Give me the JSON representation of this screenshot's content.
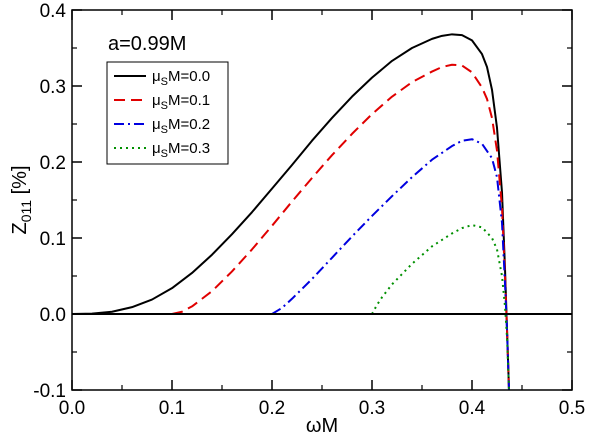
{
  "chart_data": {
    "type": "line",
    "title": "",
    "xlabel": "ωM",
    "ylabel": "Z011 [%]",
    "xlim": [
      0.0,
      0.5
    ],
    "ylim": [
      -0.1,
      0.4
    ],
    "x_ticks": [
      "0.0",
      "0.1",
      "0.2",
      "0.3",
      "0.4",
      "0.5"
    ],
    "y_ticks": [
      "-0.1",
      "0.0",
      "0.1",
      "0.2",
      "0.3",
      "0.4"
    ],
    "grid": false,
    "legend_position": "top-left",
    "annotation": "a=0.99M",
    "horizontal_line_y": 0.0,
    "series": [
      {
        "name": "μSM=0.0",
        "color": "#000000",
        "dash": "solid",
        "points": [
          [
            0.0,
            0.0
          ],
          [
            0.02,
            0.0005
          ],
          [
            0.04,
            0.003
          ],
          [
            0.06,
            0.009
          ],
          [
            0.08,
            0.019
          ],
          [
            0.1,
            0.034
          ],
          [
            0.12,
            0.054
          ],
          [
            0.14,
            0.078
          ],
          [
            0.16,
            0.105
          ],
          [
            0.18,
            0.134
          ],
          [
            0.2,
            0.165
          ],
          [
            0.22,
            0.196
          ],
          [
            0.24,
            0.228
          ],
          [
            0.26,
            0.258
          ],
          [
            0.28,
            0.286
          ],
          [
            0.3,
            0.311
          ],
          [
            0.32,
            0.333
          ],
          [
            0.34,
            0.35
          ],
          [
            0.36,
            0.362
          ],
          [
            0.37,
            0.366
          ],
          [
            0.38,
            0.368
          ],
          [
            0.39,
            0.367
          ],
          [
            0.4,
            0.36
          ],
          [
            0.41,
            0.342
          ],
          [
            0.415,
            0.325
          ],
          [
            0.42,
            0.295
          ],
          [
            0.425,
            0.245
          ],
          [
            0.43,
            0.16
          ],
          [
            0.433,
            0.06
          ],
          [
            0.435,
            -0.02
          ],
          [
            0.437,
            -0.1
          ]
        ]
      },
      {
        "name": "μSM=0.1",
        "color": "#e00000",
        "dash": "dashed",
        "points": [
          [
            0.1,
            0.0
          ],
          [
            0.11,
            0.003
          ],
          [
            0.12,
            0.01
          ],
          [
            0.14,
            0.03
          ],
          [
            0.16,
            0.056
          ],
          [
            0.18,
            0.085
          ],
          [
            0.2,
            0.116
          ],
          [
            0.22,
            0.148
          ],
          [
            0.24,
            0.179
          ],
          [
            0.26,
            0.209
          ],
          [
            0.28,
            0.237
          ],
          [
            0.3,
            0.263
          ],
          [
            0.32,
            0.286
          ],
          [
            0.34,
            0.305
          ],
          [
            0.36,
            0.319
          ],
          [
            0.37,
            0.325
          ],
          [
            0.38,
            0.328
          ],
          [
            0.39,
            0.327
          ],
          [
            0.4,
            0.318
          ],
          [
            0.41,
            0.298
          ],
          [
            0.415,
            0.283
          ],
          [
            0.42,
            0.258
          ],
          [
            0.425,
            0.215
          ],
          [
            0.43,
            0.14
          ],
          [
            0.433,
            0.05
          ],
          [
            0.435,
            -0.02
          ],
          [
            0.437,
            -0.1
          ]
        ]
      },
      {
        "name": "μSM=0.2",
        "color": "#0000e0",
        "dash": "dash-dot",
        "points": [
          [
            0.2,
            0.0
          ],
          [
            0.21,
            0.008
          ],
          [
            0.22,
            0.02
          ],
          [
            0.24,
            0.046
          ],
          [
            0.26,
            0.074
          ],
          [
            0.28,
            0.102
          ],
          [
            0.3,
            0.129
          ],
          [
            0.32,
            0.155
          ],
          [
            0.34,
            0.18
          ],
          [
            0.36,
            0.203
          ],
          [
            0.38,
            0.221
          ],
          [
            0.39,
            0.228
          ],
          [
            0.4,
            0.23
          ],
          [
            0.41,
            0.224
          ],
          [
            0.42,
            0.205
          ],
          [
            0.425,
            0.18
          ],
          [
            0.43,
            0.12
          ],
          [
            0.433,
            0.04
          ],
          [
            0.435,
            -0.02
          ],
          [
            0.437,
            -0.1
          ]
        ]
      },
      {
        "name": "μSM=0.3",
        "color": "#009000",
        "dash": "dotted",
        "points": [
          [
            0.3,
            0.0
          ],
          [
            0.305,
            0.012
          ],
          [
            0.31,
            0.022
          ],
          [
            0.32,
            0.039
          ],
          [
            0.34,
            0.066
          ],
          [
            0.36,
            0.089
          ],
          [
            0.38,
            0.106
          ],
          [
            0.39,
            0.113
          ],
          [
            0.4,
            0.117
          ],
          [
            0.41,
            0.114
          ],
          [
            0.42,
            0.1
          ],
          [
            0.425,
            0.085
          ],
          [
            0.43,
            0.05
          ],
          [
            0.433,
            0.01
          ],
          [
            0.435,
            -0.03
          ],
          [
            0.437,
            -0.1
          ]
        ]
      }
    ]
  }
}
